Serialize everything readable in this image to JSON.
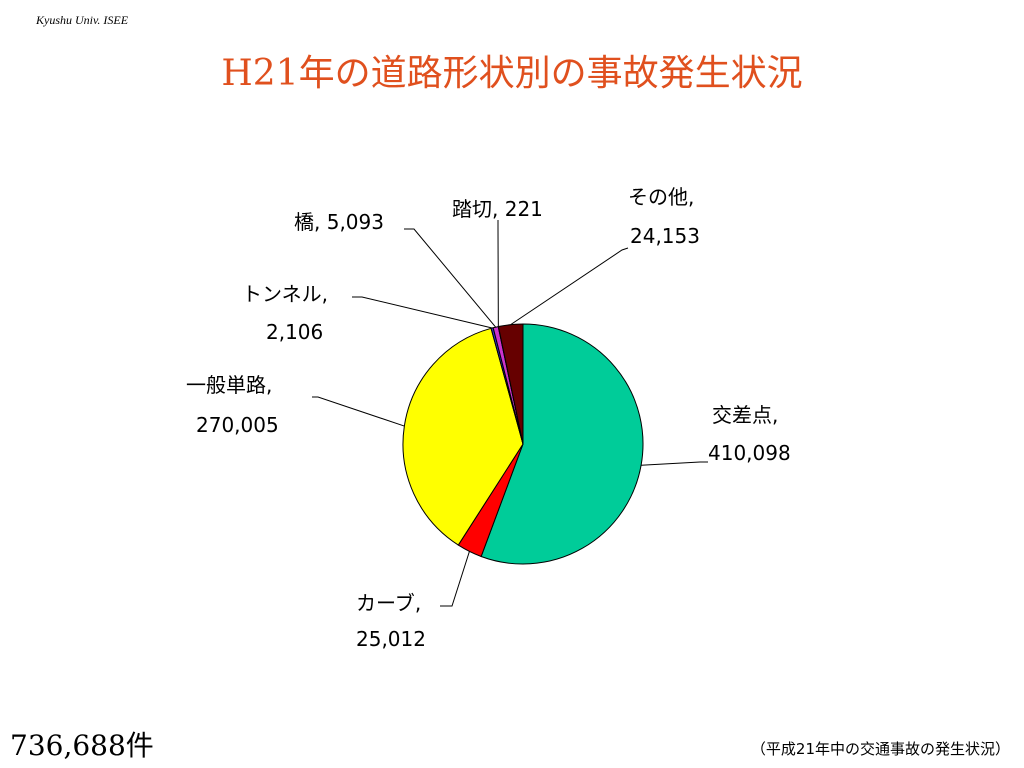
{
  "header": {
    "org": "Kyushu Univ. ISEE",
    "title": "H21年の道路形状別の事故発生状況"
  },
  "chart_data": {
    "type": "pie",
    "title": "H21年の道路形状別の事故発生状況",
    "slices": [
      {
        "label": "交差点",
        "value": 410098,
        "value_text": "410,098",
        "color": "#00cc99"
      },
      {
        "label": "カーブ",
        "value": 25012,
        "value_text": "25,012",
        "color": "#ff0000"
      },
      {
        "label": "一般単路",
        "value": 270005,
        "value_text": "270,005",
        "color": "#ffff00"
      },
      {
        "label": "トンネル",
        "value": 2106,
        "value_text": "2,106",
        "color": "#3333cc"
      },
      {
        "label": "橋",
        "value": 5093,
        "value_text": "5,093",
        "color": "#cc33cc"
      },
      {
        "label": "踏切",
        "value": 221,
        "value_text": "221",
        "color": "#993333"
      },
      {
        "label": "その他",
        "value": 24153,
        "value_text": "24,153",
        "color": "#660000"
      }
    ]
  },
  "footer": {
    "total": "736,688件",
    "source": "（平成21年中の交通事故の発生状況）"
  }
}
